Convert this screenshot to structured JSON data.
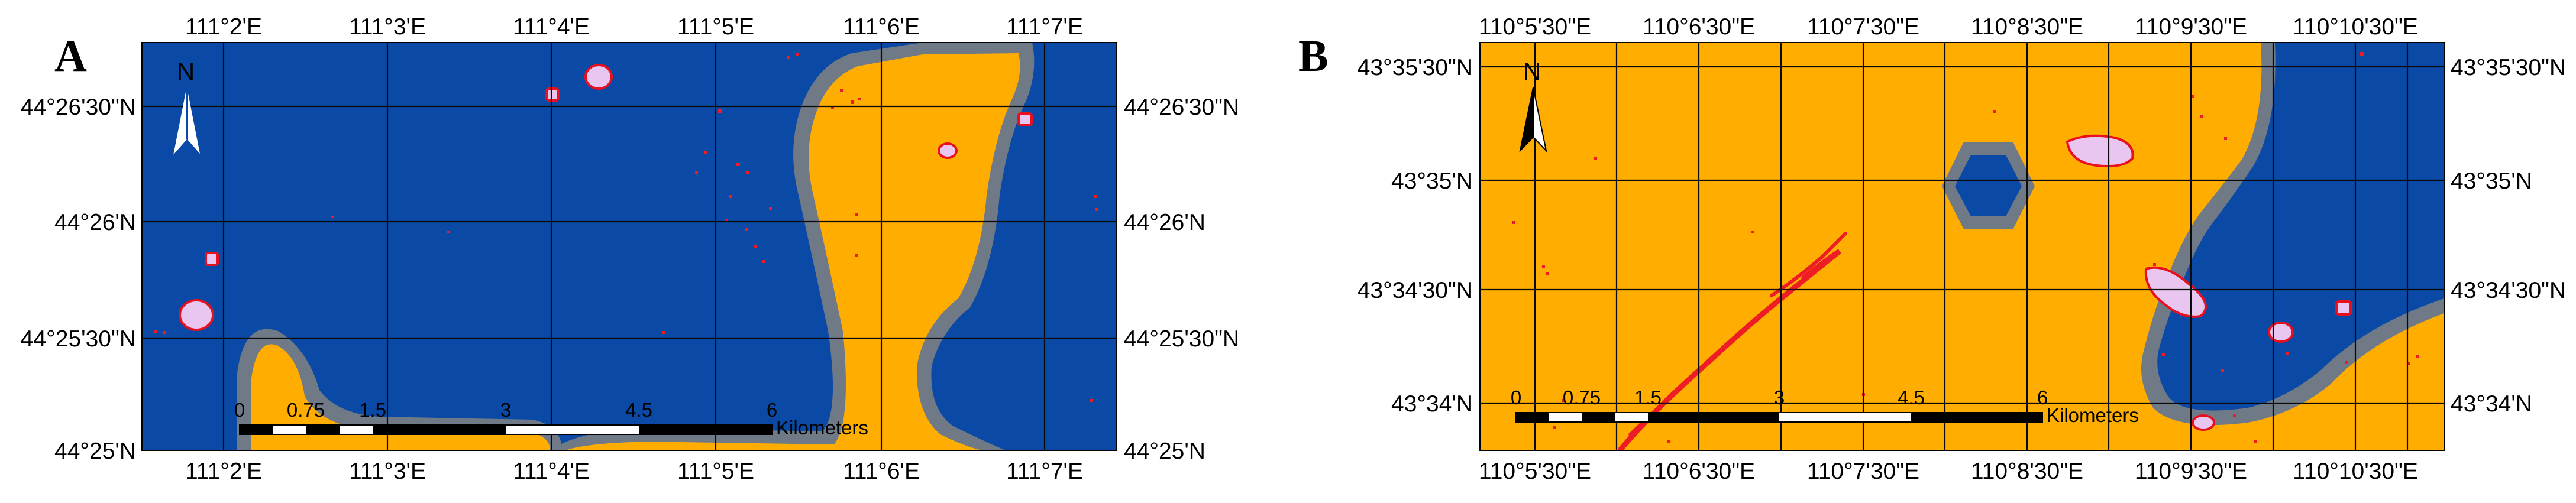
{
  "colors": {
    "water": "#0a4aa6",
    "land": "#ffad00",
    "buffer": "#6f7a86",
    "patch_fill": "#e8c6f0",
    "patch_edge": "#e8101e",
    "specks": "#ee1c24",
    "grid": "#0a0a0a",
    "frame": "#000000"
  },
  "panels": [
    {
      "id": "A",
      "label": "A",
      "north_label": "N",
      "scalebar": {
        "labels": [
          "0",
          "0.75",
          "1.5",
          "3",
          "4.5",
          "6"
        ],
        "unit": "Kilometers"
      },
      "top_ticks": [
        "111°2'E",
        "111°3'E",
        "111°4'E",
        "111°5'E",
        "111°6'E",
        "111°7'E"
      ],
      "bottom_ticks": [
        "111°2'E",
        "111°3'E",
        "111°4'E",
        "111°5'E",
        "111°6'E",
        "111°7'E"
      ],
      "left_ticks": [
        "44°26'30\"N",
        "44°26'N",
        "44°25'30\"N",
        "44°25'N"
      ],
      "right_ticks": [
        "44°26'30\"N",
        "44°26'N",
        "44°25'30\"N",
        "44°25'N"
      ]
    },
    {
      "id": "B",
      "label": "B",
      "north_label": "N",
      "scalebar": {
        "labels": [
          "0",
          "0.75",
          "1.5",
          "3",
          "4.5",
          "6"
        ],
        "unit": "Kilometers"
      },
      "top_ticks": [
        "110°5'30\"E",
        "110°6'30\"E",
        "110°7'30\"E",
        "110°8'30\"E",
        "110°9'30\"E",
        "110°10'30\"E"
      ],
      "bottom_ticks": [
        "110°5'30\"E",
        "110°6'30\"E",
        "110°7'30\"E",
        "110°8'30\"E",
        "110°9'30\"E",
        "110°10'30\"E"
      ],
      "left_ticks": [
        "43°35'30\"N",
        "43°35'N",
        "43°34'30\"N",
        "43°34'N"
      ],
      "right_ticks": [
        "43°35'30\"N",
        "43°35'N",
        "43°34'30\"N",
        "43°34'N"
      ]
    }
  ]
}
